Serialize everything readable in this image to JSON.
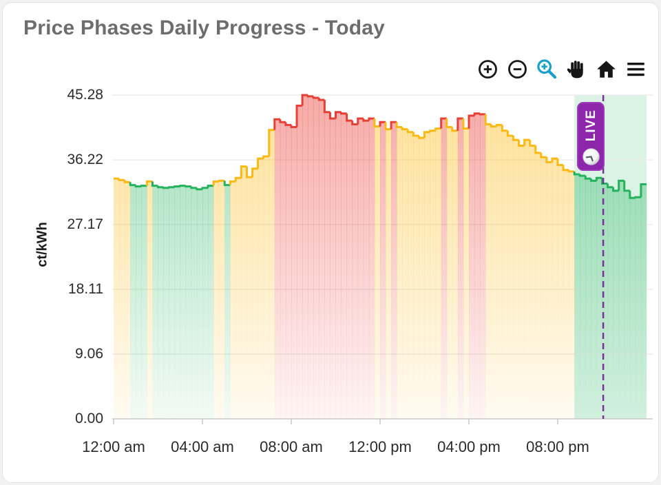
{
  "card": {
    "title": "Price Phases Daily Progress - Today"
  },
  "toolbar": {
    "buttons": [
      {
        "name": "zoom-in",
        "color": "#1a1a1a",
        "active": false
      },
      {
        "name": "zoom-out",
        "color": "#1a1a1a",
        "active": false
      },
      {
        "name": "box-zoom",
        "color": "#17a3c9",
        "active": true
      },
      {
        "name": "pan",
        "color": "#1a1a1a",
        "active": false
      },
      {
        "name": "home",
        "color": "#1a1a1a",
        "active": false
      },
      {
        "name": "menu",
        "color": "#1a1a1a",
        "active": false
      }
    ]
  },
  "live_badge": {
    "label": "LIVE",
    "color": "#8d26ab",
    "border_color": "#9c3ab8",
    "text_color": "#ffffff",
    "icon": "clock-icon"
  },
  "chart_data": {
    "type": "area",
    "subtype": "step-15min-phase-colored",
    "title": "Price Phases Daily Progress - Today",
    "xlabel": "",
    "ylabel": "ct/kWh",
    "ylim": [
      0,
      45.28
    ],
    "grid": true,
    "legend_position": "none",
    "y_ticks": [
      "45.28",
      "36.22",
      "27.17",
      "18.11",
      "9.06",
      "0.00"
    ],
    "y_tick_values": [
      45.28,
      36.22,
      27.17,
      18.11,
      9.06,
      0
    ],
    "x_ticks": [
      "12:00 am",
      "04:00 am",
      "08:00 am",
      "12:00 pm",
      "04:00 pm",
      "08:00 pm"
    ],
    "x_tick_hours": [
      0,
      4,
      8,
      12,
      16,
      20
    ],
    "phase_colors": {
      "green": "#22b35c",
      "yellow": "#fdb913",
      "red": "#e93e36"
    },
    "now_line": {
      "time": "22:03",
      "color": "#7d2f9d",
      "style": "dashed"
    },
    "green_region_start": "20:45",
    "times": [
      "00:00",
      "00:15",
      "00:30",
      "00:45",
      "01:00",
      "01:15",
      "01:30",
      "01:45",
      "02:00",
      "02:15",
      "02:30",
      "02:45",
      "03:00",
      "03:15",
      "03:30",
      "03:45",
      "04:00",
      "04:15",
      "04:30",
      "04:45",
      "05:00",
      "05:15",
      "05:30",
      "05:45",
      "06:00",
      "06:15",
      "06:30",
      "06:45",
      "07:00",
      "07:15",
      "07:30",
      "07:45",
      "08:00",
      "08:15",
      "08:30",
      "08:45",
      "09:00",
      "09:15",
      "09:30",
      "09:45",
      "10:00",
      "10:15",
      "10:30",
      "10:45",
      "11:00",
      "11:15",
      "11:30",
      "11:45",
      "12:00",
      "12:15",
      "12:30",
      "12:45",
      "13:00",
      "13:15",
      "13:30",
      "13:45",
      "14:00",
      "14:15",
      "14:30",
      "14:45",
      "15:00",
      "15:15",
      "15:30",
      "15:45",
      "16:00",
      "16:15",
      "16:30",
      "16:45",
      "17:00",
      "17:15",
      "17:30",
      "17:45",
      "18:00",
      "18:15",
      "18:30",
      "18:45",
      "19:00",
      "19:15",
      "19:30",
      "19:45",
      "20:00",
      "20:15",
      "20:30",
      "20:45",
      "21:00",
      "21:15",
      "21:30",
      "21:45",
      "22:00",
      "22:15",
      "22:30",
      "22:45",
      "23:00",
      "23:15",
      "23:30",
      "23:45"
    ],
    "values": [
      33.6,
      33.4,
      33.1,
      32.7,
      32.5,
      32.6,
      33.2,
      32.6,
      32.4,
      32.3,
      32.4,
      32.5,
      32.6,
      32.5,
      32.3,
      32.1,
      32.3,
      32.6,
      33.2,
      33.3,
      32.7,
      33.2,
      33.7,
      35.3,
      33.8,
      35.0,
      36.4,
      36.7,
      40.4,
      41.9,
      41.5,
      41.1,
      40.8,
      43.8,
      45.28,
      45.1,
      44.9,
      44.6,
      42.9,
      42.0,
      42.9,
      42.7,
      41.7,
      41.2,
      42.0,
      41.7,
      42.0,
      40.9,
      41.5,
      40.5,
      41.5,
      40.8,
      40.5,
      40.1,
      39.6,
      39.3,
      40.1,
      40.3,
      40.6,
      42.0,
      40.8,
      40.3,
      42.0,
      40.6,
      42.4,
      42.7,
      42.6,
      41.2,
      40.9,
      41.1,
      40.3,
      39.6,
      39.0,
      38.2,
      39.0,
      38.2,
      37.2,
      36.6,
      35.9,
      36.4,
      35.5,
      34.8,
      34.6,
      34.2,
      34.0,
      33.6,
      33.3,
      33.7,
      32.9,
      32.4,
      31.9,
      33.3,
      31.9,
      30.9,
      31.0,
      32.8
    ],
    "phases": [
      "yellow",
      "yellow",
      "yellow",
      "green",
      "green",
      "green",
      "yellow",
      "green",
      "green",
      "green",
      "green",
      "green",
      "green",
      "green",
      "green",
      "green",
      "green",
      "green",
      "yellow",
      "yellow",
      "green",
      "yellow",
      "yellow",
      "yellow",
      "yellow",
      "yellow",
      "yellow",
      "yellow",
      "yellow",
      "red",
      "red",
      "red",
      "red",
      "red",
      "red",
      "red",
      "red",
      "red",
      "red",
      "red",
      "red",
      "red",
      "red",
      "red",
      "red",
      "red",
      "red",
      "yellow",
      "red",
      "yellow",
      "red",
      "yellow",
      "yellow",
      "yellow",
      "yellow",
      "yellow",
      "yellow",
      "yellow",
      "yellow",
      "red",
      "yellow",
      "yellow",
      "red",
      "yellow",
      "red",
      "red",
      "red",
      "yellow",
      "yellow",
      "yellow",
      "yellow",
      "yellow",
      "yellow",
      "yellow",
      "yellow",
      "yellow",
      "yellow",
      "yellow",
      "yellow",
      "yellow",
      "yellow",
      "yellow",
      "yellow",
      "green",
      "green",
      "green",
      "green",
      "green",
      "green",
      "green",
      "green",
      "green",
      "green",
      "green",
      "green",
      "green"
    ]
  }
}
